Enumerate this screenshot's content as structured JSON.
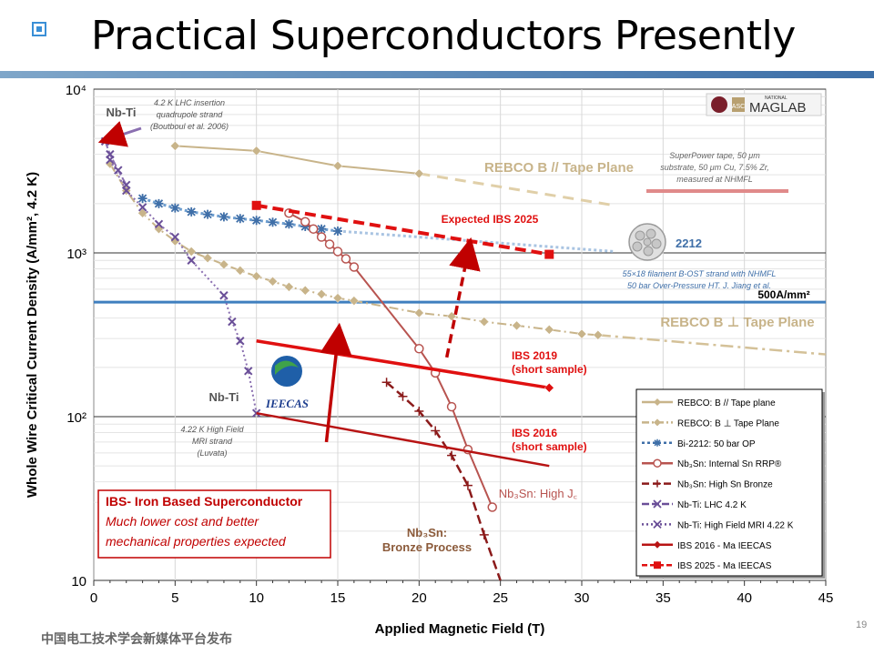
{
  "slide": {
    "title": "Practical Superconductors Presently",
    "footer_text": "中国电工技术学会新媒体平台发布",
    "page_number": "19",
    "logo_text": "MAGLAB",
    "logo_small": "NATIONAL",
    "logo_asc": "ASC",
    "ieecas_logo": "IEECAS"
  },
  "colors": {
    "rebco": "#c8b48a",
    "bi2212": "#6f9fd0",
    "nb3sn_internal": "#b85450",
    "nb3sn_bronze": "#8b1a1a",
    "nbti_lhc": "#8a6fb0",
    "nbti_mri": "#8a6fb0",
    "ibs2016": "#b81414",
    "ibs2019": "#e01010",
    "ibs2025": "#e01010",
    "ref500": "#3f7fbf",
    "arrow": "#c00000"
  },
  "chart_data": {
    "type": "line",
    "xlabel": "Applied Magnetic Field (T)",
    "ylabel": "Whole Wire Critical Current Density (A/mm², 4.2 K)",
    "xlim": [
      0,
      45
    ],
    "ylim": [
      10,
      10000
    ],
    "yscale": "log",
    "x_ticks": [
      "0",
      "5",
      "10",
      "15",
      "20",
      "25",
      "30",
      "35",
      "40",
      "45"
    ],
    "y_tick_labels": [
      "10",
      "10²",
      "10³",
      "10⁴"
    ],
    "y_tick_values": [
      10,
      100,
      1000,
      10000
    ],
    "grid": true,
    "legend_position": "bottom-right",
    "series": [
      {
        "key": "rebco_par",
        "name": "REBCO: B // Tape plane",
        "x": [
          5,
          10,
          15,
          20
        ],
        "y": [
          4500,
          4200,
          3400,
          3050
        ],
        "extrapolated": {
          "x": [
            20,
            32
          ],
          "y": [
            3050,
            1950
          ]
        }
      },
      {
        "key": "rebco_perp",
        "name": "REBCO: B ⊥ Tape Plane",
        "x": [
          1,
          2,
          3,
          4,
          5,
          6,
          7,
          8,
          9,
          10,
          11,
          12,
          13,
          14,
          15,
          16,
          20,
          22,
          24,
          26,
          28,
          30,
          31
        ],
        "y": [
          3500,
          2400,
          1750,
          1400,
          1180,
          1020,
          930,
          850,
          780,
          720,
          670,
          620,
          590,
          560,
          530,
          510,
          430,
          410,
          380,
          360,
          340,
          320,
          315
        ],
        "extrapolated": {
          "x": [
            31,
            45
          ],
          "y": [
            315,
            240
          ]
        }
      },
      {
        "key": "bi2212",
        "name": "Bi-2212: 50 bar OP",
        "x": [
          3,
          4,
          5,
          6,
          7,
          8,
          9,
          10,
          11,
          12,
          13,
          14,
          15
        ],
        "y": [
          2150,
          2000,
          1880,
          1780,
          1720,
          1660,
          1620,
          1580,
          1540,
          1500,
          1450,
          1400,
          1360
        ],
        "extrapolated": {
          "x": [
            15,
            32
          ],
          "y": [
            1360,
            1020
          ]
        }
      },
      {
        "key": "nb3sn_rrp",
        "name": "Nb₃Sn: Internal Sn RRP®",
        "x": [
          12,
          13,
          13.5,
          14,
          14.5,
          15,
          15.5,
          16,
          20,
          21,
          22,
          23,
          24.5
        ],
        "y": [
          1750,
          1550,
          1400,
          1250,
          1130,
          1020,
          920,
          820,
          260,
          185,
          115,
          63,
          28
        ]
      },
      {
        "key": "nb3sn_bronze",
        "name": "Nb₃Sn: High Sn Bronze",
        "x": [
          18,
          19,
          20,
          21,
          22,
          23,
          24
        ],
        "y": [
          162,
          133,
          108,
          82,
          58,
          38,
          19
        ],
        "extrapolated": {
          "x": [
            24,
            25
          ],
          "y": [
            19,
            10
          ]
        }
      },
      {
        "key": "nbti_lhc",
        "name": "Nb-Ti: LHC 4.2 K",
        "x": [
          0.7,
          1,
          1.5,
          2
        ],
        "y": [
          4800,
          4000,
          3200,
          2600
        ]
      },
      {
        "key": "nbti_mri",
        "name": "Nb-Ti: High Field MRI 4.22 K",
        "x": [
          1,
          2,
          3,
          4,
          5,
          6,
          8,
          8.5,
          9,
          9.5,
          10
        ],
        "y": [
          3700,
          2400,
          1900,
          1500,
          1250,
          900,
          550,
          380,
          290,
          190,
          105
        ]
      },
      {
        "key": "ibs2016",
        "name": "IBS 2016 - Ma IEECAS",
        "x": [
          10,
          28
        ],
        "y": [
          105,
          50
        ]
      },
      {
        "key": "ibs2019",
        "name": "IBS 2019",
        "x": [
          10,
          28
        ],
        "y": [
          290,
          150
        ]
      },
      {
        "key": "ibs2025",
        "name": "IBS 2025 - Ma IEECAS",
        "x": [
          10,
          28
        ],
        "y": [
          1950,
          980
        ]
      },
      {
        "key": "ref500",
        "name": "500A/mm²",
        "x": [
          0,
          45
        ],
        "y": [
          500,
          500
        ]
      }
    ],
    "annotations": {
      "nbti_lhc_label": "Nb-Ti",
      "nbti_lhc_note": [
        "4.2 K LHC insertion",
        "quadrupole strand",
        "(Boutboul et al. 2006)"
      ],
      "nbti_mri_label": "Nb-Ti",
      "nbti_mri_note": [
        "4.22 K High Field",
        "MRI strand",
        "(Luvata)"
      ],
      "rebco_par_label": "REBCO B // Tape Plane",
      "rebco_perp_label": "REBCO B ⊥ Tape Plane",
      "superpower_note": [
        "SuperPower tape, 50 μm",
        "substrate, 50 μm Cu, 7.5% Zr,",
        "measured at NHMFL"
      ],
      "bi2212_label": "2212",
      "bi2212_note": [
        "55×18 filament B-OST strand with NHMFL",
        "50 bar Over-Pressure HT. J. Jiang et al."
      ],
      "ref500_label": "500A/mm²",
      "ibs2025_label": "Expected IBS 2025",
      "ibs2019_label": [
        "IBS 2019",
        "(short sample)"
      ],
      "ibs2016_label": [
        "IBS 2016",
        "(short sample)"
      ],
      "nb3sn_high_label": "Nb₃Sn: High J꜀",
      "nb3sn_bronze_label": [
        "Nb₃Sn:",
        "Bronze Process"
      ],
      "ibs_box": [
        "IBS- Iron Based Superconductor",
        "Much lower cost and better",
        "mechanical properties expected"
      ]
    }
  }
}
